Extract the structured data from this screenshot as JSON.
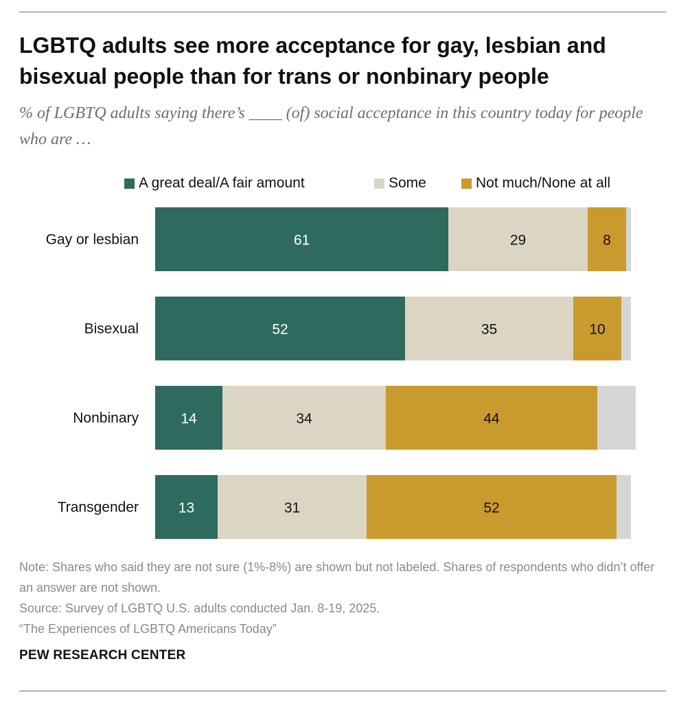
{
  "header": {
    "title": "LGBTQ adults see more acceptance for gay, lesbian and bisexual people than for trans or nonbinary people",
    "subtitle": "% of LGBTQ adults saying there’s ____ (of) social acceptance in this country today for people who are …"
  },
  "legend": {
    "items": [
      {
        "label": "A great deal/A fair amount",
        "color": "#2e6b5e"
      },
      {
        "label": "Some",
        "color": "#dbd6c3"
      },
      {
        "label": "Not much/None at all",
        "color": "#c99a2e"
      }
    ]
  },
  "chart_data": {
    "type": "bar",
    "orientation": "horizontal",
    "stacked": true,
    "categories": [
      "Gay or lesbian",
      "Bisexual",
      "Nonbinary",
      "Transgender"
    ],
    "series": [
      {
        "name": "A great deal/A fair amount",
        "color": "#2e6b5e",
        "label_color": "#ffffff",
        "values": [
          61,
          52,
          14,
          13
        ]
      },
      {
        "name": "Some",
        "color": "#dbd6c3",
        "label_color": "#111111",
        "values": [
          29,
          35,
          34,
          31
        ]
      },
      {
        "name": "Not much/None at all",
        "color": "#c99a2e",
        "label_color": "#111111",
        "values": [
          8,
          10,
          44,
          52
        ]
      },
      {
        "color": "#d6d6d6",
        "show_labels": false,
        "values": [
          1,
          2,
          8,
          3
        ]
      }
    ],
    "xlim": [
      0,
      100
    ],
    "grid": false,
    "legend_position": "top"
  },
  "notes": {
    "note": "Note: Shares who said they are not sure (1%-8%) are shown but not labeled. Shares of respondents who didn’t offer an answer are not shown.",
    "source": "Source: Survey of LGBTQ U.S. adults conducted Jan. 8-19, 2025.",
    "report": "“The Experiences of LGBTQ Americans Today”"
  },
  "footer": {
    "brand": "PEW RESEARCH CENTER"
  }
}
